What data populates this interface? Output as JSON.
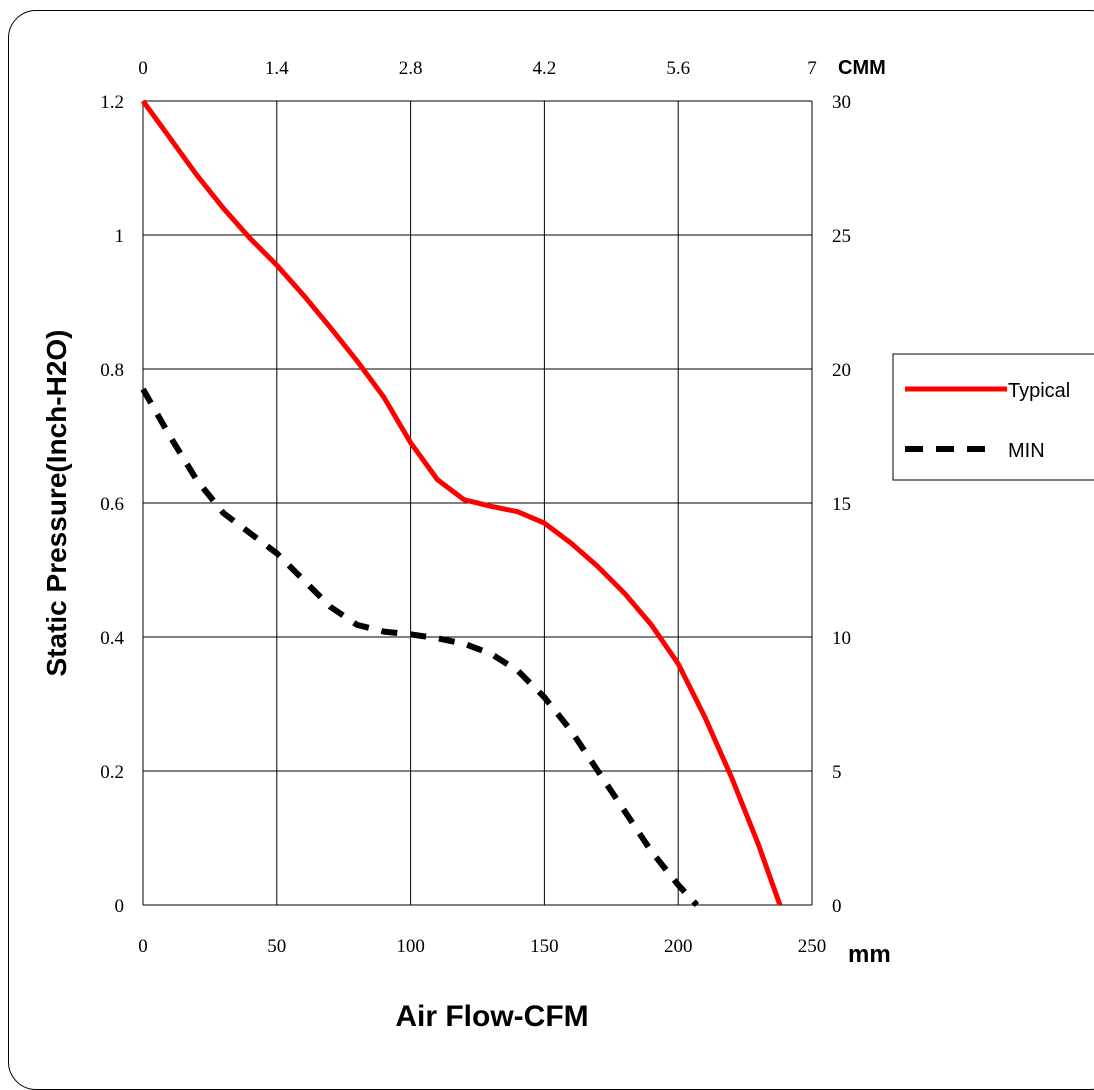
{
  "chart_data": {
    "type": "line",
    "xlabel": "Air Flow-CFM",
    "ylabel": "Static Pressure(Inch-H2O)",
    "x_unit": "mm",
    "x2_unit": "CMM",
    "xlim": [
      0,
      250
    ],
    "ylim": [
      0,
      1.2
    ],
    "x2lim": [
      0,
      7
    ],
    "y2lim": [
      0,
      30
    ],
    "x_ticks": [
      "0",
      "50",
      "100",
      "150",
      "200",
      "250"
    ],
    "x2_ticks": [
      "0",
      "1.4",
      "2.8",
      "4.2",
      "5.6",
      "7"
    ],
    "y_ticks": [
      "0",
      "0.2",
      "0.4",
      "0.6",
      "0.8",
      "1",
      "1.2"
    ],
    "y2_ticks": [
      "0",
      "5",
      "10",
      "15",
      "20",
      "25",
      "30"
    ],
    "grid": true,
    "legend_position": "right",
    "series": [
      {
        "name": "Typical",
        "color": "#ff0000",
        "style": "solid",
        "x": [
          0,
          10,
          20,
          30,
          40,
          50,
          60,
          70,
          80,
          90,
          100,
          110,
          120,
          130,
          140,
          150,
          160,
          170,
          180,
          190,
          200,
          210,
          220,
          230,
          238
        ],
        "y": [
          1.2,
          1.145,
          1.09,
          1.04,
          0.995,
          0.955,
          0.91,
          0.862,
          0.812,
          0.758,
          0.69,
          0.635,
          0.605,
          0.595,
          0.587,
          0.57,
          0.54,
          0.505,
          0.465,
          0.418,
          0.36,
          0.28,
          0.19,
          0.09,
          0.0
        ]
      },
      {
        "name": "MIN",
        "color": "#000000",
        "style": "dashed",
        "x": [
          0,
          10,
          20,
          30,
          40,
          50,
          60,
          70,
          80,
          90,
          100,
          110,
          120,
          130,
          140,
          150,
          160,
          170,
          180,
          190,
          200,
          207
        ],
        "y": [
          0.77,
          0.7,
          0.635,
          0.585,
          0.555,
          0.525,
          0.485,
          0.445,
          0.418,
          0.408,
          0.404,
          0.398,
          0.39,
          0.375,
          0.35,
          0.31,
          0.26,
          0.2,
          0.14,
          0.08,
          0.03,
          0.0
        ]
      }
    ]
  }
}
